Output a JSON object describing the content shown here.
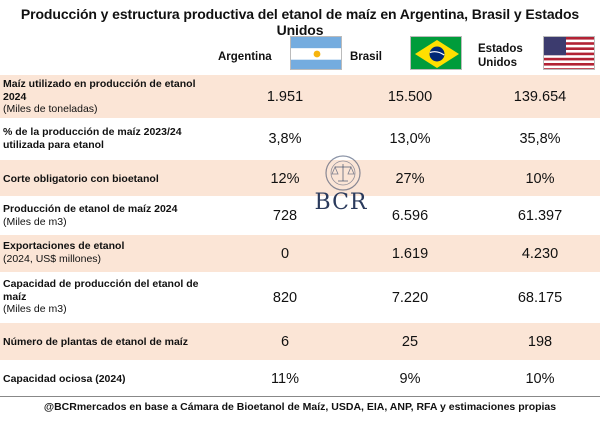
{
  "title": "Producción y estructura productiva del etanol de maíz en Argentina, Brasil y Estados Unidos",
  "columns": {
    "argentina": "Argentina",
    "brasil": "Brasil",
    "eeuu_line1": "Estados",
    "eeuu_line2": "Unidos"
  },
  "flags": {
    "argentina": "argentina-flag-icon",
    "brasil": "brazil-flag-icon",
    "eeuu": "usa-flag-icon"
  },
  "rows": [
    {
      "label": "Maíz utilizado en producción de etanol 2024",
      "unit": "(Miles de toneladas)",
      "ar": "1.951",
      "br": "15.500",
      "us": "139.654"
    },
    {
      "label": "% de la producción de maíz 2023/24 utilizada para etanol",
      "unit": "",
      "ar": "3,8%",
      "br": "13,0%",
      "us": "35,8%"
    },
    {
      "label": "Corte obligatorio con bioetanol",
      "unit": "",
      "ar": "12%",
      "br": "27%",
      "us": "10%"
    },
    {
      "label": "Producción de etanol de maíz 2024",
      "unit": "(Miles de m3)",
      "ar": "728",
      "br": "6.596",
      "us": "61.397"
    },
    {
      "label": "Exportaciones de etanol",
      "unit": "(2024, US$ millones)",
      "ar": "0",
      "br": "1.619",
      "us": "4.230"
    },
    {
      "label": "Capacidad de producción del etanol de maíz",
      "unit": "(Miles de m3)",
      "ar": "820",
      "br": "7.220",
      "us": "68.175"
    },
    {
      "label": "Número de plantas de etanol de maíz",
      "unit": "",
      "ar": "6",
      "br": "25",
      "us": "198"
    },
    {
      "label": "Capacidad ociosa (2024)",
      "unit": "",
      "ar": "11%",
      "br": "9%",
      "us": "10%"
    }
  ],
  "watermark": {
    "text": "BCR",
    "seal": "bcr-seal-icon"
  },
  "footer": "@BCRmercados en base a Cámara de Bioetanol de Maíz, USDA, EIA, ANP, RFA y estimaciones propias",
  "colors": {
    "shaded": "#fbe5d6",
    "plain": "#ffffff"
  }
}
